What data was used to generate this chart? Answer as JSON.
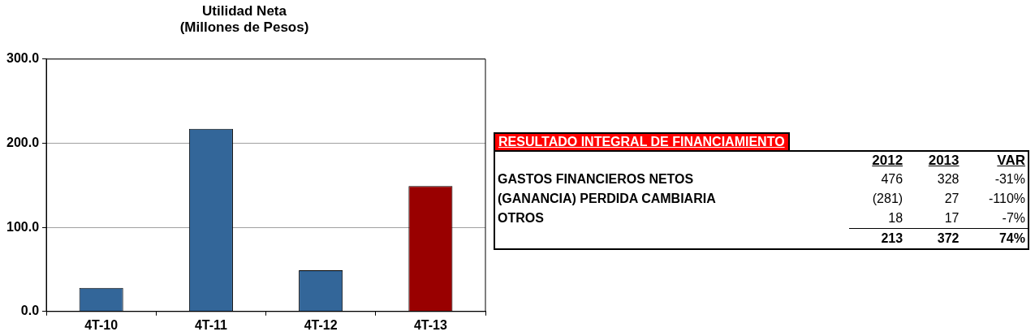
{
  "chart_data": [
    {
      "type": "bar",
      "title": "Utilidad Neta\n(Millones de Pesos)",
      "categories": [
        "4T-10",
        "4T-11",
        "4T-12",
        "4T-13"
      ],
      "values": [
        28,
        217,
        49,
        149
      ],
      "colors": [
        "#336699",
        "#336699",
        "#336699",
        "#990000"
      ],
      "ylim": [
        0,
        300
      ],
      "yticks": [
        {
          "value": 0,
          "label": "0.0"
        },
        {
          "value": 100,
          "label": "100.0"
        },
        {
          "value": 200,
          "label": "200.0"
        },
        {
          "value": 300,
          "label": "300.0"
        }
      ],
      "grid": "y",
      "legend": false
    },
    {
      "type": "other",
      "title": "RESULTADO INTEGRAL DE FINANCIAMIENTO",
      "categories": [
        "2012",
        "2013",
        "VAR"
      ],
      "y_categories": [
        "GASTOS FINANCIEROS NETOS",
        "(GANANCIA) PERDIDA CAMBIARIA",
        "OTROS",
        null
      ],
      "cell_labels": [
        [
          "476",
          "328",
          "-31%"
        ],
        [
          "(281)",
          "27",
          "-110%"
        ],
        [
          "18",
          "17",
          "-7%"
        ],
        [
          "213",
          "372",
          "74%"
        ]
      ]
    }
  ]
}
